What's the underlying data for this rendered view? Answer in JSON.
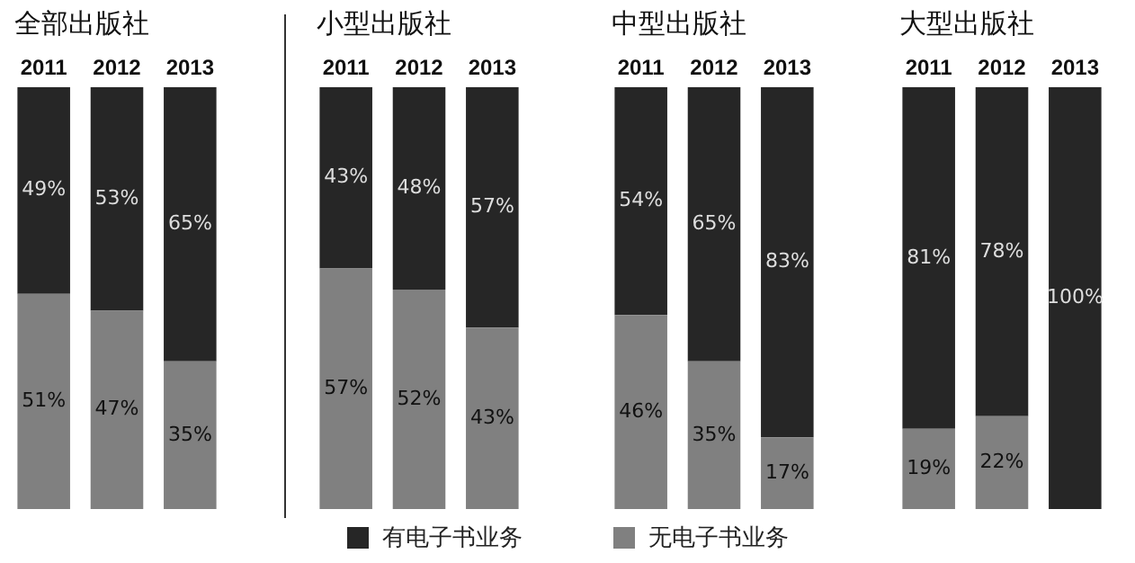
{
  "chart_data": [
    {
      "type": "bar",
      "title": "全部出版社",
      "categories": [
        "2011",
        "2012",
        "2013"
      ],
      "stacked": true,
      "ylim": [
        0,
        100
      ],
      "tick_labels": "x",
      "legend": "bottom",
      "series": [
        {
          "name": "无电子书业务",
          "color": "#808080",
          "values": [
            51,
            47,
            35
          ],
          "value_labels": [
            "51%",
            "47%",
            "35%"
          ]
        },
        {
          "name": "有电子书业务",
          "color": "#262626",
          "values": [
            49,
            53,
            65
          ],
          "value_labels": [
            "49%",
            "53%",
            "65%"
          ]
        }
      ]
    },
    {
      "type": "bar",
      "title": "小型出版社",
      "categories": [
        "2011",
        "2012",
        "2013"
      ],
      "stacked": true,
      "ylim": [
        0,
        100
      ],
      "tick_labels": "x",
      "series": [
        {
          "color": "#808080",
          "values": [
            57,
            52,
            43
          ],
          "value_labels": [
            "57%",
            "52%",
            "43%"
          ]
        },
        {
          "color": "#262626",
          "values": [
            43,
            48,
            57
          ],
          "value_labels": [
            "43%",
            "48%",
            "57%"
          ]
        }
      ]
    },
    {
      "type": "bar",
      "title": "中型出版社",
      "categories": [
        "2011",
        "2012",
        "2013"
      ],
      "stacked": true,
      "ylim": [
        0,
        100
      ],
      "tick_labels": "x",
      "series": [
        {
          "color": "#808080",
          "values": [
            46,
            35,
            17
          ],
          "value_labels": [
            "46%",
            "35%",
            "17%"
          ]
        },
        {
          "color": "#262626",
          "values": [
            54,
            65,
            83
          ],
          "value_labels": [
            "54%",
            "65%",
            "83%"
          ]
        }
      ]
    },
    {
      "type": "bar",
      "title": "大型出版社",
      "categories": [
        "2011",
        "2012",
        "2013"
      ],
      "stacked": true,
      "ylim": [
        0,
        100
      ],
      "tick_labels": "x",
      "series": [
        {
          "color": "#808080",
          "values": [
            19,
            22,
            0
          ],
          "value_labels": [
            "19%",
            "22%",
            null
          ]
        },
        {
          "color": "#262626",
          "values": [
            81,
            78,
            100
          ],
          "value_labels": [
            "81%",
            "78%",
            "100%"
          ]
        }
      ]
    }
  ]
}
